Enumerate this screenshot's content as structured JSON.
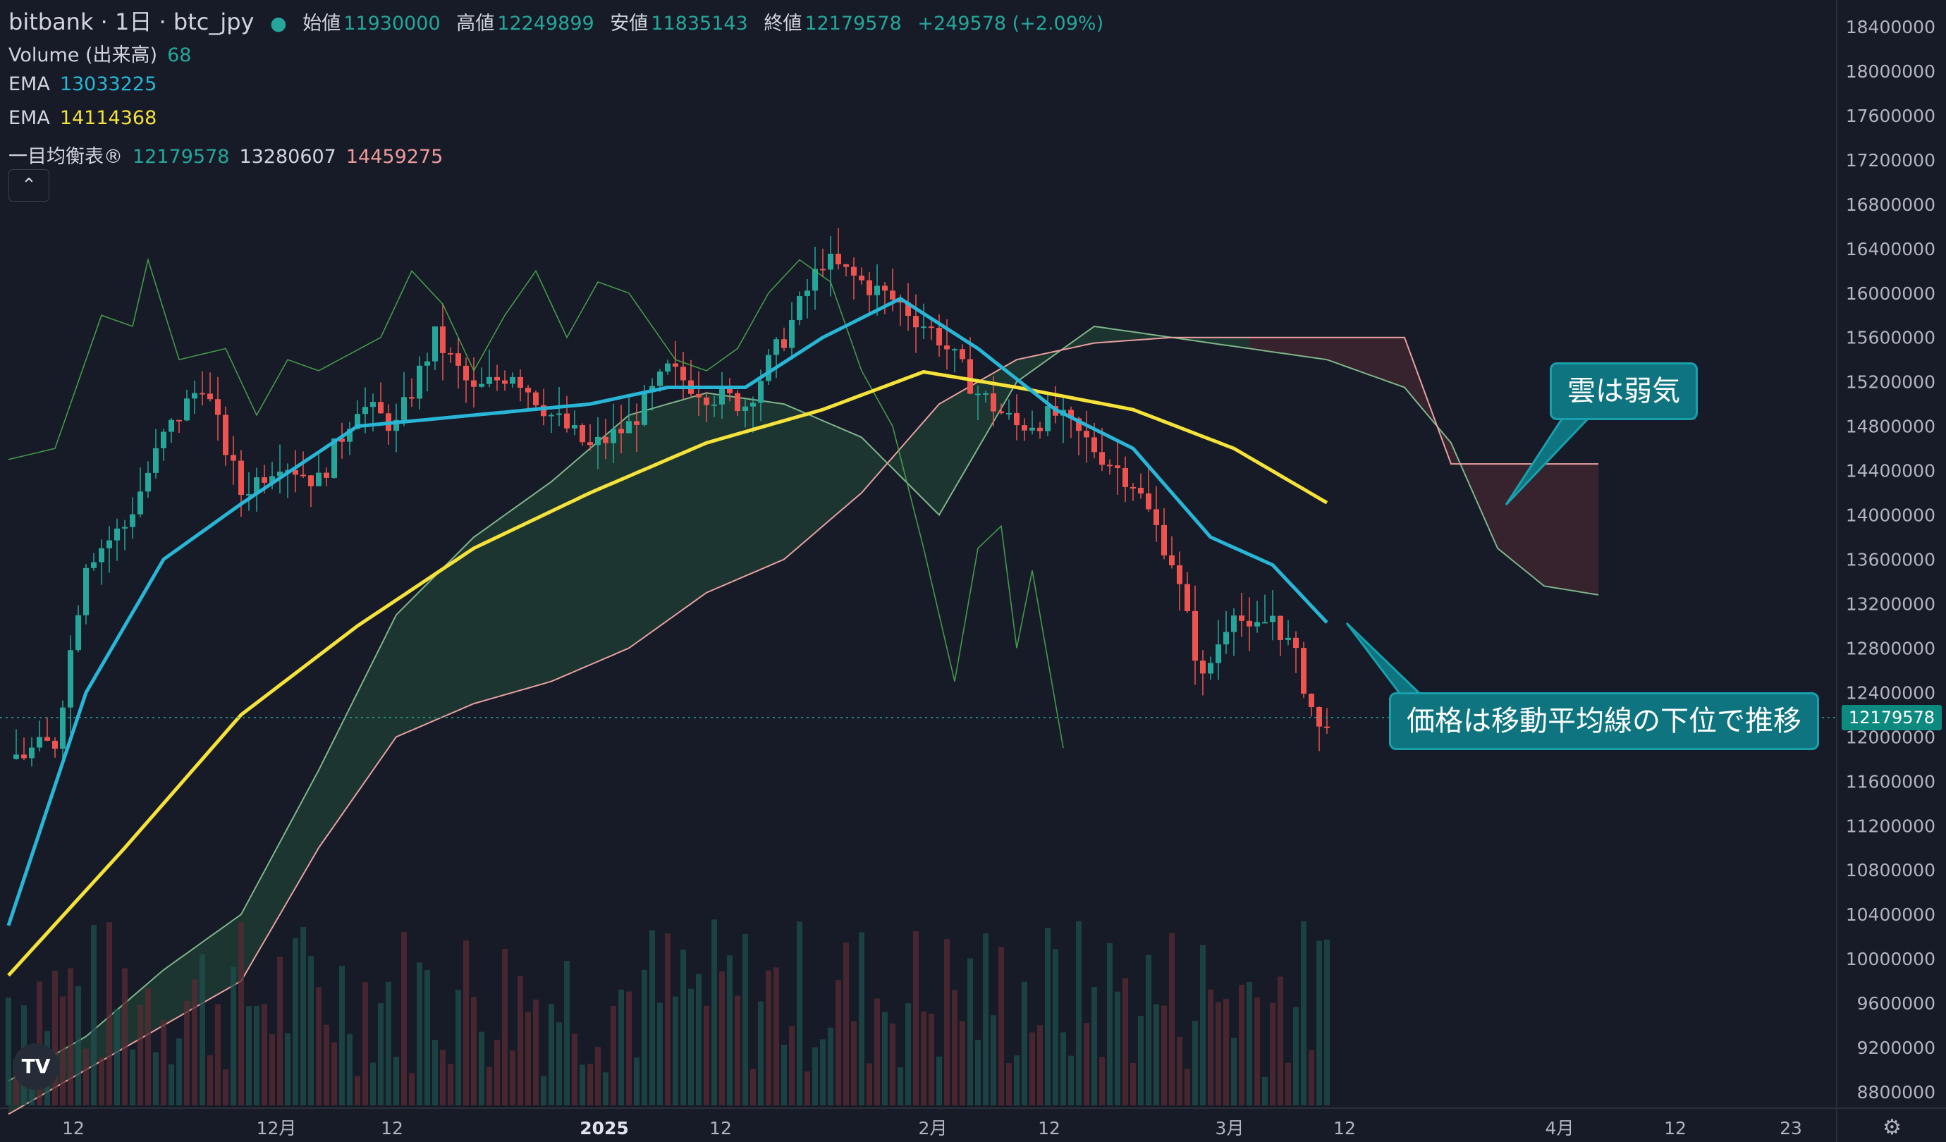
{
  "header": {
    "symbol": "bitbank · 1日 · btc_jpy",
    "open_label": "始値",
    "open": "11930000",
    "high_label": "高値",
    "high": "12249899",
    "low_label": "安値",
    "low": "11835143",
    "close_label": "終値",
    "close": "12179578",
    "change": "+249578 (+2.09%)"
  },
  "indicators": [
    {
      "name": "Volume (出来高)",
      "values": [
        "68"
      ],
      "colors": [
        "#26a69a"
      ]
    },
    {
      "name": "EMA",
      "values": [
        "13033225"
      ],
      "colors": [
        "#29b6d6"
      ]
    },
    {
      "name": "EMA",
      "values": [
        "14114368"
      ],
      "colors": [
        "#f5e23b"
      ]
    },
    {
      "name": "一目均衡表®",
      "values": [
        "12179578",
        "13280607",
        "14459275"
      ],
      "colors": [
        "#26a69a",
        "#d1d4dc",
        "#ef9a9a"
      ]
    }
  ],
  "collapse_icon": "chevron-up-icon",
  "annotations": [
    {
      "text": "雲は弱気"
    },
    {
      "text": "価格は移動平均線の下位で推移"
    }
  ],
  "last_price_tag": "12179578",
  "colors": {
    "background": "#161b27",
    "up": "#26a69a",
    "down": "#ef5350",
    "ema_fast": "#29b6d6",
    "ema_slow": "#f5e23b",
    "cloud_bull": "#1f3a33",
    "cloud_bear": "#3b2530",
    "callout": "#0e7480"
  },
  "chart_data": {
    "type": "candlestick",
    "y_axis_ticks": [
      18400000,
      18000000,
      17600000,
      17200000,
      16800000,
      16400000,
      16000000,
      15600000,
      15200000,
      14800000,
      14400000,
      14000000,
      13600000,
      13200000,
      12800000,
      12400000,
      12000000,
      11600000,
      11200000,
      10800000,
      10400000,
      10000000,
      9600000,
      9200000,
      8800000
    ],
    "x_axis_ticks": [
      "12",
      "12月",
      "12",
      "2025",
      "12",
      "2月",
      "12",
      "3月",
      "12",
      "4月",
      "12",
      "23"
    ],
    "ylim": [
      8600000,
      18600000
    ],
    "close_series_keypoints": [
      [
        0,
        11800000
      ],
      [
        6,
        11950000
      ],
      [
        10,
        13600000
      ],
      [
        15,
        13900000
      ],
      [
        20,
        14700000
      ],
      [
        25,
        15200000
      ],
      [
        30,
        14200000
      ],
      [
        35,
        14500000
      ],
      [
        40,
        14300000
      ],
      [
        45,
        15000000
      ],
      [
        50,
        14800000
      ],
      [
        55,
        15600000
      ],
      [
        60,
        15100000
      ],
      [
        65,
        15300000
      ],
      [
        70,
        14900000
      ],
      [
        75,
        14600000
      ],
      [
        80,
        14800000
      ],
      [
        85,
        15300000
      ],
      [
        90,
        15100000
      ],
      [
        95,
        15000000
      ],
      [
        100,
        15600000
      ],
      [
        105,
        16300000
      ],
      [
        110,
        16100000
      ],
      [
        115,
        15900000
      ],
      [
        120,
        15600000
      ],
      [
        125,
        15100000
      ],
      [
        130,
        14800000
      ],
      [
        135,
        14900000
      ],
      [
        140,
        14600000
      ],
      [
        145,
        14300000
      ],
      [
        150,
        13600000
      ],
      [
        154,
        12500000
      ],
      [
        158,
        13200000
      ],
      [
        160,
        12900000
      ],
      [
        163,
        13100000
      ],
      [
        166,
        12700000
      ],
      [
        169,
        12050000
      ],
      [
        170,
        12180000
      ]
    ],
    "ema_fast_keypoints": [
      [
        0,
        10300000
      ],
      [
        10,
        12400000
      ],
      [
        20,
        13600000
      ],
      [
        30,
        14100000
      ],
      [
        45,
        14800000
      ],
      [
        60,
        14900000
      ],
      [
        75,
        15000000
      ],
      [
        85,
        15150000
      ],
      [
        95,
        15150000
      ],
      [
        105,
        15600000
      ],
      [
        115,
        15950000
      ],
      [
        125,
        15500000
      ],
      [
        135,
        14950000
      ],
      [
        145,
        14600000
      ],
      [
        155,
        13800000
      ],
      [
        163,
        13550000
      ],
      [
        170,
        13030000
      ]
    ],
    "ema_slow_keypoints": [
      [
        0,
        9850000
      ],
      [
        15,
        11000000
      ],
      [
        30,
        12200000
      ],
      [
        45,
        13000000
      ],
      [
        60,
        13700000
      ],
      [
        75,
        14200000
      ],
      [
        90,
        14650000
      ],
      [
        105,
        14950000
      ],
      [
        118,
        15290000
      ],
      [
        130,
        15150000
      ],
      [
        145,
        14950000
      ],
      [
        158,
        14600000
      ],
      [
        170,
        14110000
      ]
    ],
    "chikou_keypoints": [
      [
        0,
        14500000
      ],
      [
        6,
        14600000
      ],
      [
        12,
        15800000
      ],
      [
        16,
        15700000
      ],
      [
        18,
        16300000
      ],
      [
        22,
        15400000
      ],
      [
        28,
        15500000
      ],
      [
        32,
        14900000
      ],
      [
        36,
        15400000
      ],
      [
        40,
        15300000
      ],
      [
        48,
        15600000
      ],
      [
        52,
        16200000
      ],
      [
        56,
        15900000
      ],
      [
        60,
        15300000
      ],
      [
        64,
        15800000
      ],
      [
        68,
        16200000
      ],
      [
        72,
        15600000
      ],
      [
        76,
        16100000
      ],
      [
        80,
        16000000
      ],
      [
        86,
        15400000
      ],
      [
        90,
        15300000
      ],
      [
        94,
        15500000
      ],
      [
        98,
        16000000
      ],
      [
        102,
        16300000
      ],
      [
        106,
        16100000
      ],
      [
        110,
        15300000
      ],
      [
        114,
        14800000
      ],
      [
        118,
        13700000
      ],
      [
        122,
        12500000
      ],
      [
        125,
        13700000
      ],
      [
        128,
        13900000
      ],
      [
        130,
        12800000
      ],
      [
        132,
        13500000
      ],
      [
        134,
        12700000
      ],
      [
        136,
        11900000
      ]
    ],
    "cloud_span_a": [
      [
        0,
        8900000
      ],
      [
        10,
        9300000
      ],
      [
        20,
        9900000
      ],
      [
        30,
        10400000
      ],
      [
        40,
        11700000
      ],
      [
        50,
        13100000
      ],
      [
        60,
        13800000
      ],
      [
        70,
        14300000
      ],
      [
        80,
        14900000
      ],
      [
        90,
        15100000
      ],
      [
        100,
        15000000
      ],
      [
        110,
        14700000
      ],
      [
        120,
        14000000
      ],
      [
        130,
        15200000
      ],
      [
        140,
        15700000
      ],
      [
        150,
        15600000
      ],
      [
        160,
        15500000
      ],
      [
        170,
        15400000
      ],
      [
        180,
        15150000
      ],
      [
        186,
        14650000
      ],
      [
        192,
        13700000
      ],
      [
        198,
        13360000
      ],
      [
        205,
        13280000
      ]
    ],
    "cloud_span_b": [
      [
        0,
        8600000
      ],
      [
        10,
        9000000
      ],
      [
        20,
        9400000
      ],
      [
        30,
        9800000
      ],
      [
        40,
        11000000
      ],
      [
        50,
        12000000
      ],
      [
        60,
        12300000
      ],
      [
        70,
        12500000
      ],
      [
        80,
        12800000
      ],
      [
        90,
        13300000
      ],
      [
        100,
        13600000
      ],
      [
        110,
        14200000
      ],
      [
        120,
        15000000
      ],
      [
        130,
        15400000
      ],
      [
        140,
        15550000
      ],
      [
        150,
        15600000
      ],
      [
        160,
        15600000
      ],
      [
        170,
        15600000
      ],
      [
        180,
        15600000
      ],
      [
        186,
        14460000
      ],
      [
        205,
        14460000
      ]
    ],
    "volume_profile_note": "volume bars shown at bottom, colored by candle direction"
  }
}
